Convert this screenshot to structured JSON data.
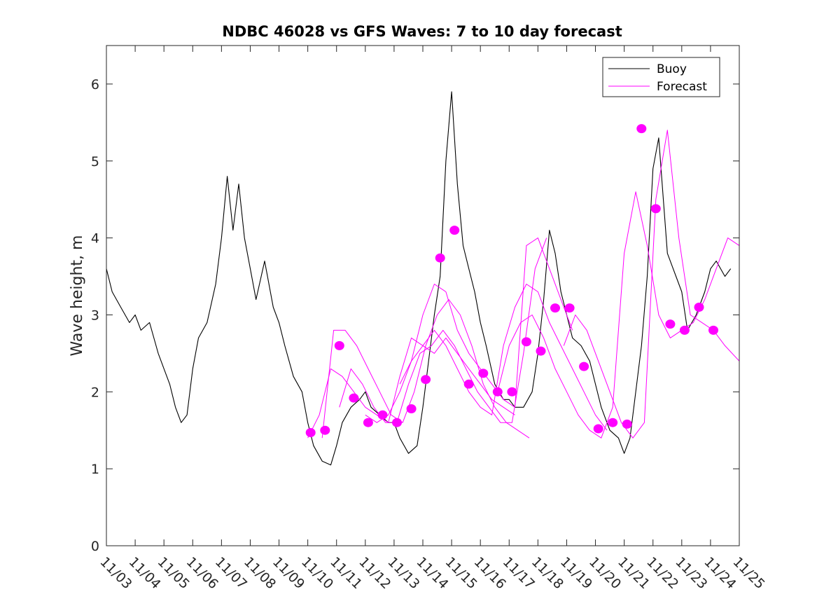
{
  "chart_data": {
    "type": "line",
    "title": "NDBC 46028 vs GFS Waves: 7 to 10 day forecast",
    "xlabel": "",
    "ylabel": "Wave height, m",
    "x_unit": "day offset from 11/03",
    "xlim": [
      0,
      22
    ],
    "ylim": [
      0,
      6.5
    ],
    "yticks": [
      0,
      1,
      2,
      3,
      4,
      5,
      6
    ],
    "xtick_labels": [
      "11/03",
      "11/04",
      "11/05",
      "11/06",
      "11/07",
      "11/08",
      "11/09",
      "11/10",
      "11/11",
      "11/12",
      "11/13",
      "11/14",
      "11/15",
      "11/16",
      "11/17",
      "11/18",
      "11/19",
      "11/20",
      "11/21",
      "11/22",
      "11/23",
      "11/24",
      "11/25"
    ],
    "legend": {
      "position": "top-right",
      "entries": [
        {
          "label": "Buoy",
          "color": "#000000"
        },
        {
          "label": "Forecast",
          "color": "#ff00ff"
        }
      ]
    },
    "colors": {
      "buoy": "#000000",
      "forecast": "#ff00ff"
    },
    "series": [
      {
        "name": "Buoy",
        "x": [
          0,
          0.2,
          0.5,
          0.8,
          1.0,
          1.2,
          1.5,
          1.8,
          2.0,
          2.2,
          2.4,
          2.6,
          2.8,
          3.0,
          3.2,
          3.5,
          3.8,
          4.0,
          4.2,
          4.4,
          4.6,
          4.8,
          5.0,
          5.2,
          5.5,
          5.8,
          6.0,
          6.2,
          6.5,
          6.8,
          7.0,
          7.2,
          7.5,
          7.8,
          8.0,
          8.2,
          8.5,
          8.8,
          9.0,
          9.2,
          9.5,
          9.8,
          10.0,
          10.2,
          10.5,
          10.8,
          11.0,
          11.2,
          11.4,
          11.6,
          11.8,
          12.0,
          12.2,
          12.4,
          12.6,
          12.8,
          13.0,
          13.2,
          13.5,
          13.8,
          14.0,
          14.2,
          14.5,
          14.8,
          15.0,
          15.2,
          15.4,
          15.6,
          15.8,
          16.0,
          16.2,
          16.5,
          16.8,
          17.0,
          17.2,
          17.5,
          17.8,
          18.0,
          18.2,
          18.4,
          18.6,
          18.8,
          19.0,
          19.2,
          19.5,
          19.8,
          20.0,
          20.2,
          20.5,
          20.8,
          21.0,
          21.2,
          21.5,
          21.7
        ],
        "values": [
          3.6,
          3.3,
          3.1,
          2.9,
          3.0,
          2.8,
          2.9,
          2.5,
          2.3,
          2.1,
          1.8,
          1.6,
          1.7,
          2.3,
          2.7,
          2.9,
          3.4,
          4.0,
          4.8,
          4.1,
          4.7,
          4.0,
          3.6,
          3.2,
          3.7,
          3.1,
          2.9,
          2.6,
          2.2,
          2.0,
          1.6,
          1.3,
          1.1,
          1.05,
          1.3,
          1.6,
          1.8,
          1.9,
          2.0,
          1.8,
          1.7,
          1.6,
          1.6,
          1.4,
          1.2,
          1.3,
          1.8,
          2.4,
          3.0,
          3.5,
          5.0,
          5.9,
          4.7,
          3.9,
          3.6,
          3.3,
          2.9,
          2.6,
          2.1,
          1.9,
          1.9,
          1.8,
          1.8,
          2.0,
          2.5,
          3.2,
          4.1,
          3.8,
          3.3,
          3.0,
          2.7,
          2.6,
          2.4,
          2.1,
          1.8,
          1.5,
          1.4,
          1.2,
          1.4,
          2.0,
          2.6,
          3.5,
          4.9,
          5.3,
          3.8,
          3.5,
          3.3,
          2.8,
          3.0,
          3.3,
          3.6,
          3.7,
          3.5,
          3.6
        ]
      },
      {
        "name": "Forecast run 1",
        "x": [
          7.0,
          7.4,
          7.8,
          8.2,
          8.6,
          9.0,
          9.4,
          9.8,
          10.2,
          10.6,
          11.0,
          11.4,
          11.8,
          12.2,
          12.6,
          13.0,
          13.4,
          13.8,
          14.2
        ],
        "values": [
          1.4,
          1.7,
          2.3,
          2.2,
          2.0,
          1.8,
          1.7,
          1.6,
          2.2,
          2.7,
          2.6,
          2.5,
          2.7,
          2.5,
          2.3,
          2.1,
          1.9,
          1.8,
          1.7
        ]
      },
      {
        "name": "Forecast run 2",
        "x": [
          7.5,
          7.9,
          8.3,
          8.7,
          9.1,
          9.5,
          9.9,
          10.3,
          10.7,
          11.1,
          11.5,
          11.9,
          12.3,
          12.7,
          13.1,
          13.5,
          13.9,
          14.3,
          14.7
        ],
        "values": [
          1.4,
          2.8,
          2.8,
          2.6,
          2.3,
          2.0,
          1.7,
          1.6,
          2.0,
          2.6,
          3.0,
          3.2,
          3.0,
          2.6,
          2.1,
          1.8,
          1.6,
          1.5,
          1.4
        ]
      },
      {
        "name": "Forecast run 3",
        "x": [
          8.1,
          8.5,
          8.9,
          9.3,
          9.7,
          10.1,
          10.5,
          10.9,
          11.3,
          11.7,
          12.1,
          12.5,
          12.9,
          13.3,
          13.7,
          14.1,
          14.5,
          14.9,
          15.3
        ],
        "values": [
          1.8,
          2.3,
          2.1,
          1.8,
          1.6,
          1.6,
          2.1,
          2.5,
          2.6,
          2.8,
          2.6,
          2.3,
          2.0,
          1.8,
          1.6,
          1.6,
          2.5,
          3.6,
          4.0
        ]
      },
      {
        "name": "Forecast run 4",
        "x": [
          9.0,
          9.4,
          9.8,
          10.2,
          10.6,
          11.0,
          11.4,
          11.8,
          12.2,
          12.6,
          13.0,
          13.4,
          13.8,
          14.2,
          14.6,
          15.0,
          15.4,
          15.8,
          16.2
        ],
        "values": [
          1.7,
          1.6,
          1.7,
          2.0,
          2.4,
          3.0,
          3.4,
          3.3,
          2.8,
          2.5,
          2.3,
          2.1,
          1.9,
          1.8,
          3.9,
          4.0,
          3.6,
          3.2,
          2.8
        ]
      },
      {
        "name": "Forecast run 5",
        "x": [
          10.2,
          10.6,
          11.0,
          11.4,
          11.8,
          12.2,
          12.6,
          13.0,
          13.4,
          13.8,
          14.2,
          14.6,
          15.0,
          15.4,
          15.8,
          16.2,
          16.6,
          17.0,
          17.4
        ],
        "values": [
          2.1,
          2.4,
          2.6,
          2.8,
          2.6,
          2.3,
          2.0,
          1.8,
          1.7,
          2.6,
          3.1,
          3.4,
          3.3,
          2.9,
          2.6,
          2.3,
          2.0,
          1.7,
          1.5
        ]
      },
      {
        "name": "Forecast run 6",
        "x": [
          13.6,
          14.0,
          14.4,
          14.8,
          15.2,
          15.6,
          16.0,
          16.4,
          16.8,
          17.2,
          17.6,
          18.0,
          18.4,
          18.8,
          19.2,
          19.6,
          20.0,
          20.4,
          20.8,
          21.2,
          21.6,
          22.0
        ],
        "values": [
          2.0,
          2.6,
          2.9,
          3.0,
          2.7,
          2.3,
          2.0,
          1.7,
          1.5,
          1.4,
          1.8,
          3.8,
          4.6,
          3.9,
          3.0,
          2.7,
          2.8,
          2.9,
          3.2,
          3.6,
          4.0,
          3.9
        ]
      },
      {
        "name": "Forecast run 7",
        "x": [
          15.9,
          16.3,
          16.7,
          17.1,
          17.5,
          17.9,
          18.3,
          18.7,
          19.1,
          19.5,
          19.9,
          20.3,
          20.7,
          21.1,
          21.5,
          22.0
        ],
        "values": [
          2.6,
          3.0,
          2.8,
          2.4,
          2.0,
          1.6,
          1.4,
          1.6,
          4.5,
          5.4,
          4.0,
          3.0,
          2.9,
          2.8,
          2.6,
          2.4
        ]
      }
    ],
    "forecast_markers": {
      "x": [
        7.1,
        7.6,
        8.1,
        8.6,
        9.1,
        9.6,
        10.1,
        10.6,
        11.1,
        11.6,
        12.1,
        12.6,
        13.1,
        13.6,
        14.1,
        14.6,
        15.1,
        15.6,
        16.1,
        16.6,
        17.1,
        17.6,
        18.1,
        18.6,
        19.1,
        19.6,
        20.1,
        20.6,
        21.1
      ],
      "values": [
        1.47,
        1.5,
        2.6,
        1.92,
        1.6,
        1.7,
        1.6,
        1.78,
        2.16,
        3.74,
        4.1,
        2.1,
        2.24,
        2.0,
        2.0,
        2.65,
        2.53,
        3.09,
        3.09,
        2.33,
        1.52,
        1.6,
        1.58,
        5.42,
        4.38,
        2.88,
        2.8,
        3.1,
        2.8
      ]
    }
  }
}
